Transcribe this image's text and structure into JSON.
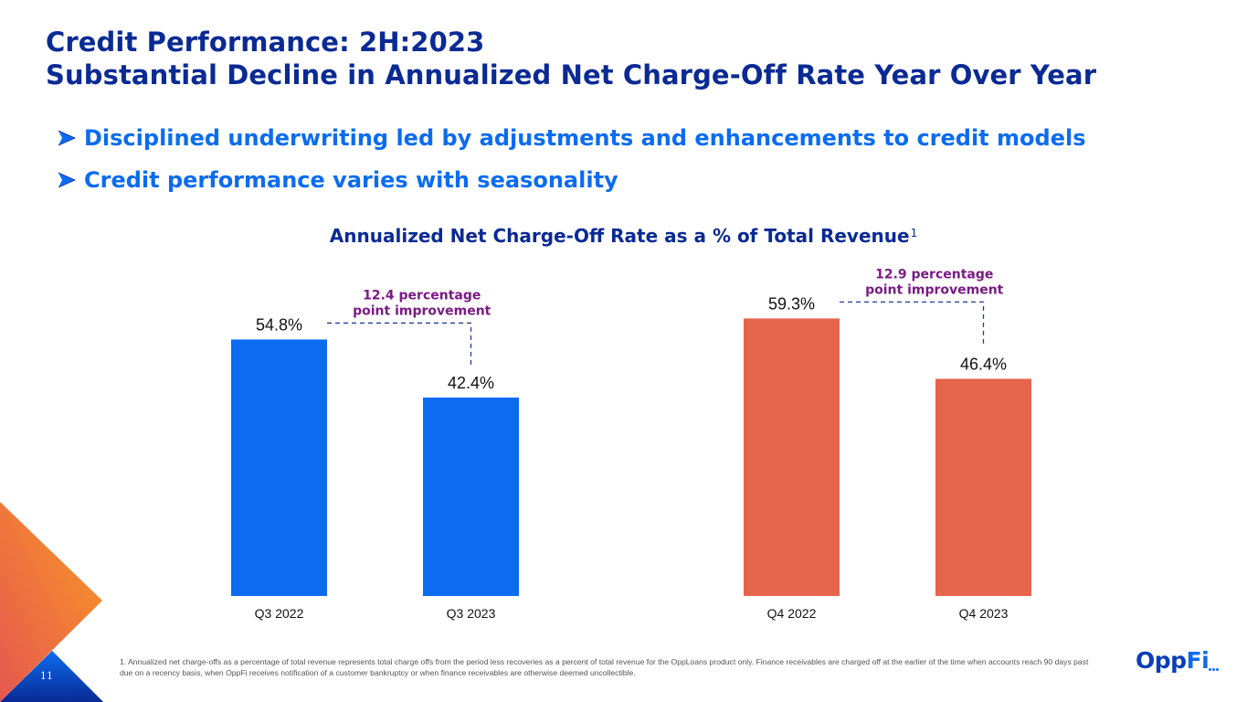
{
  "slide": {
    "title_line1": "Credit Performance: 2H:2023",
    "title_line2": "Substantial Decline in Annualized Net Charge-Off Rate Year Over Year",
    "bullets": [
      "Disciplined underwriting led by adjustments and enhancements to credit models",
      "Credit performance varies with seasonality"
    ],
    "bullet_icon": "arrowhead-bullet-icon",
    "page_number": "11",
    "logo": {
      "main": "Opp",
      "accent": "Fi"
    },
    "footnote": "1. Annualized net charge-offs as a percentage of total revenue represents total charge offs from the period less recoveries as a percent of total revenue for the OppLoans product only. Finance receivables are charged off at the earlier of the time when accounts reach 90 days past due on a recency basis, when OppFi receives notification of a customer bankruptcy or when finance receivables are otherwise deemed uncollectible.",
    "colors": {
      "title": "#0a2a94",
      "bullet": "#0b6cf0",
      "q3_bars": "#0b6cf0",
      "q4_bars": "#e5644c",
      "annotation": "#7a1a85",
      "connector": "#1f3a9a"
    }
  },
  "chart_data": {
    "type": "bar",
    "title": "Annualized Net Charge-Off Rate as a % of Total Revenue",
    "title_superscript": "1",
    "xlabel": "",
    "ylabel": "",
    "ylim": [
      0,
      60
    ],
    "grid": false,
    "value_axis_shown": false,
    "groups": [
      {
        "name": "Q3",
        "categories": [
          "Q3 2022",
          "Q3 2023"
        ],
        "values": [
          54.8,
          42.4
        ],
        "labels": [
          "54.8%",
          "42.4%"
        ],
        "color": "#0b6cf0",
        "annotation": {
          "line1": "12.4 percentage",
          "line2": "point improvement"
        }
      },
      {
        "name": "Q4",
        "categories": [
          "Q4 2022",
          "Q4 2023"
        ],
        "values": [
          59.3,
          46.4
        ],
        "labels": [
          "59.3%",
          "46.4%"
        ],
        "color": "#e5644c",
        "annotation": {
          "line1": "12.9 percentage",
          "line2": "point improvement"
        }
      }
    ]
  }
}
